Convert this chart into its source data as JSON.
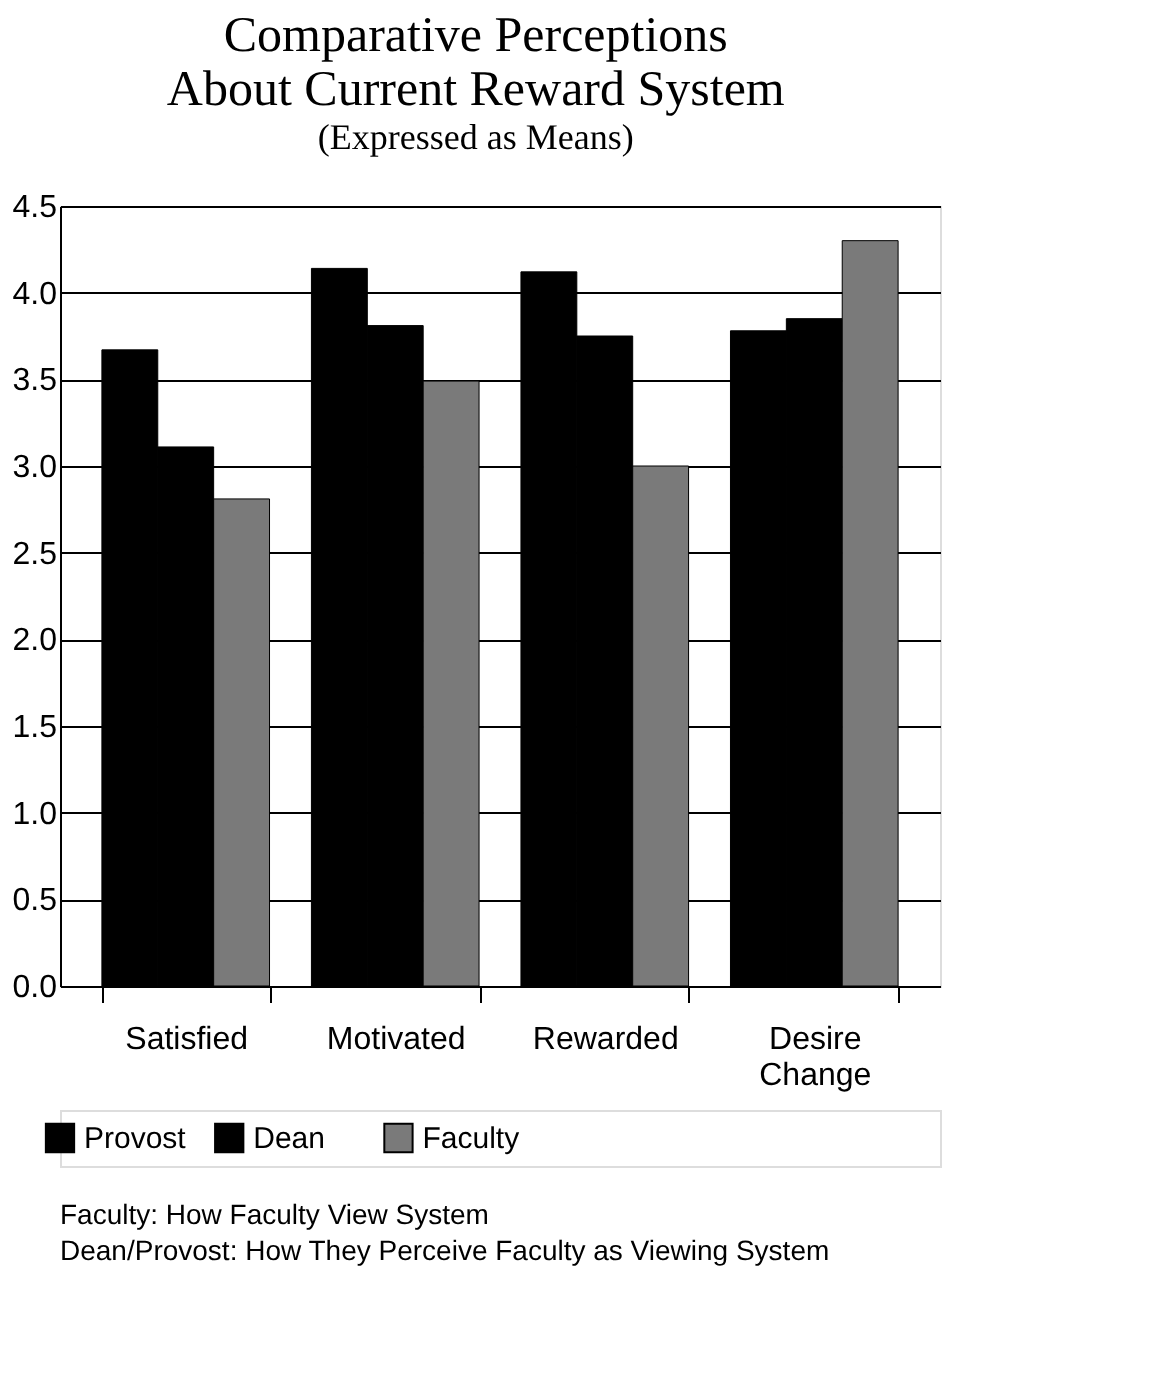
{
  "chart_data": {
    "type": "bar",
    "title": [
      "Comparative Perceptions",
      "About Current Reward System"
    ],
    "subtitle": "(Expressed as Means)",
    "categories": [
      "Satisfied",
      "Motivated",
      "Rewarded",
      "Desire Change"
    ],
    "series": [
      {
        "name": "Provost",
        "color": "#000000",
        "values": [
          3.67,
          4.14,
          4.12,
          3.78
        ]
      },
      {
        "name": "Dean",
        "color": "#000000",
        "values": [
          3.11,
          3.81,
          3.75,
          3.85
        ]
      },
      {
        "name": "Faculty",
        "color": "#7a7a7a",
        "values": [
          2.81,
          3.49,
          3.0,
          4.3
        ]
      }
    ],
    "ylim": [
      0,
      4.5
    ],
    "yticks": [
      {
        "value": 0,
        "label": "0.0"
      },
      {
        "value": 0.5,
        "label": "0.5"
      },
      {
        "value": 1,
        "label": "1.0"
      },
      {
        "value": 1.5,
        "label": "1.5"
      },
      {
        "value": 2,
        "label": "2.0"
      },
      {
        "value": 2.5,
        "label": "2.5"
      },
      {
        "value": 3,
        "label": "3.0"
      },
      {
        "value": 3.5,
        "label": "3.5"
      },
      {
        "value": 4,
        "label": "4.0"
      },
      {
        "value": 4.5,
        "label": "4.5"
      }
    ],
    "grid": "y",
    "legend": "bottom left",
    "annotations": [
      "Faculty: How Faculty View System",
      "Dean/Provost: How They Perceive Faculty as Viewing System"
    ]
  }
}
